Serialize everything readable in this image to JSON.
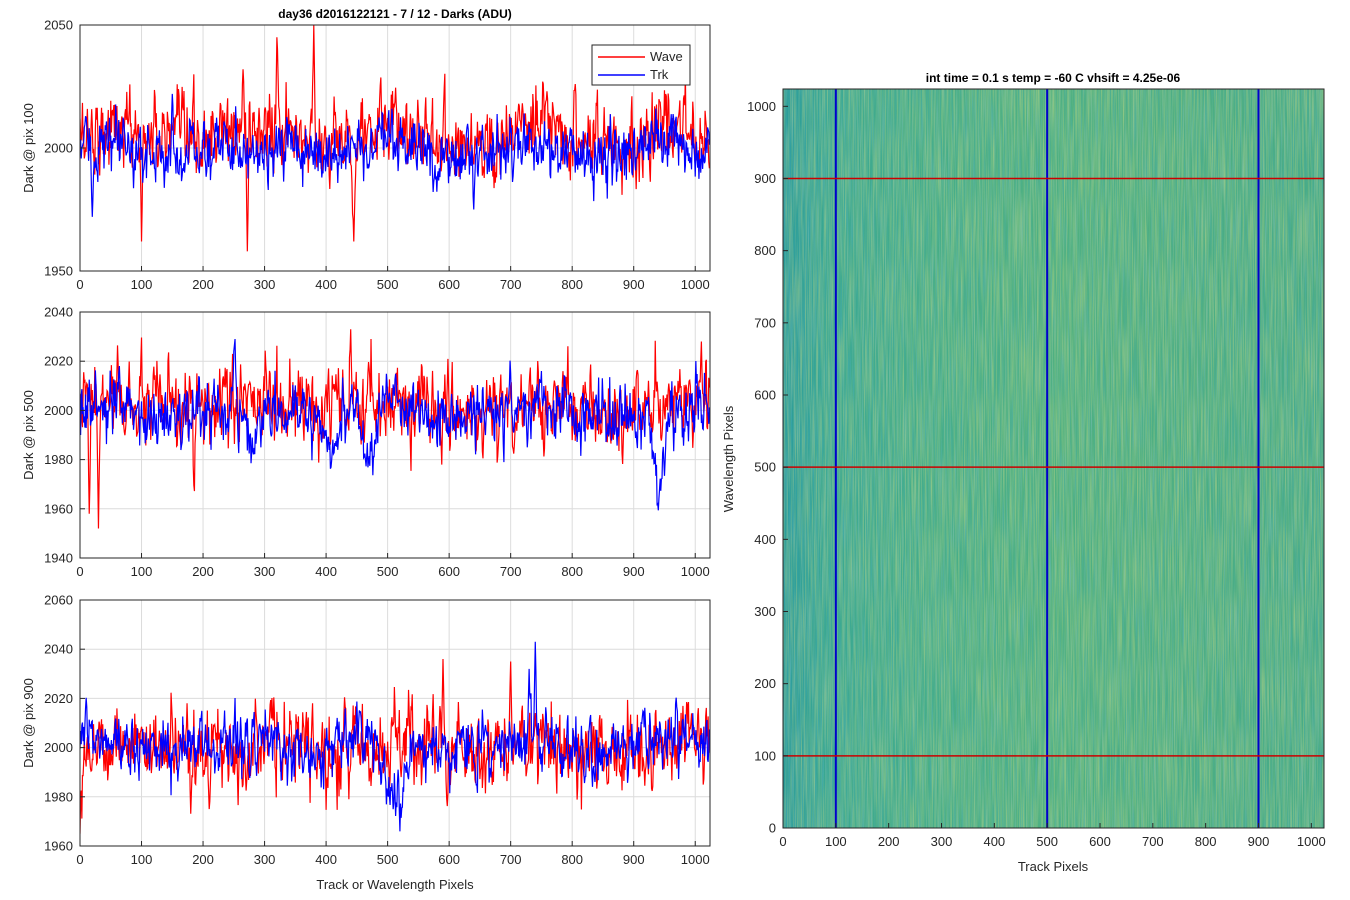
{
  "chart_data": [
    {
      "type": "line",
      "title": "day36 d2016122121 - 7 / 12 - Darks (ADU)",
      "xlabel": "",
      "ylabel": "Dark @ pix 100",
      "xlim": [
        0,
        1024
      ],
      "ylim": [
        1950,
        2050
      ],
      "xticks": [
        0,
        100,
        200,
        300,
        400,
        500,
        600,
        700,
        800,
        900,
        1000
      ],
      "yticks": [
        1950,
        2000,
        2050
      ],
      "grid": "on",
      "legend": {
        "position": "top-right",
        "entries": [
          "Wave",
          "Trk"
        ]
      },
      "series": [
        {
          "name": "Wave",
          "color": "#ff0000",
          "mean": 2005,
          "noise": 8,
          "spikes": [
            [
              380,
              2050
            ],
            [
              320,
              2045
            ],
            [
              265,
              2032
            ],
            [
              272,
              1958
            ],
            [
              100,
              1962
            ],
            [
              445,
              1962
            ]
          ]
        },
        {
          "name": "Trk",
          "color": "#0000ff",
          "mean": 1999,
          "noise": 6,
          "spikes": [
            [
              20,
              1972
            ],
            [
              150,
              2022
            ],
            [
              640,
              1975
            ]
          ]
        }
      ]
    },
    {
      "type": "line",
      "title": "",
      "xlabel": "",
      "ylabel": "Dark @ pix 500",
      "xlim": [
        0,
        1024
      ],
      "ylim": [
        1940,
        2040
      ],
      "xticks": [
        0,
        100,
        200,
        300,
        400,
        500,
        600,
        700,
        800,
        900,
        1000
      ],
      "yticks": [
        1940,
        1960,
        1980,
        2000,
        2020,
        2040
      ],
      "grid": "on",
      "series": [
        {
          "name": "Wave",
          "color": "#ff0000",
          "mean": 2001,
          "noise": 8,
          "spikes": [
            [
              440,
              2033
            ],
            [
              30,
              1952
            ],
            [
              15,
              1958
            ],
            [
              1010,
              2028
            ]
          ]
        },
        {
          "name": "Trk",
          "color": "#0000ff",
          "mean": 1999,
          "noise": 6,
          "dips": [
            [
              940,
              1956
            ],
            [
              470,
              1980
            ],
            [
              410,
              1982
            ],
            [
              280,
              1982
            ]
          ]
        }
      ]
    },
    {
      "type": "line",
      "title": "",
      "xlabel": "Track or Wavelength Pixels",
      "ylabel": "Dark @ pix 900",
      "xlim": [
        0,
        1024
      ],
      "ylim": [
        1960,
        2060
      ],
      "xticks": [
        0,
        100,
        200,
        300,
        400,
        500,
        600,
        700,
        800,
        900,
        1000
      ],
      "yticks": [
        1960,
        1980,
        2000,
        2020,
        2040,
        2060
      ],
      "grid": "on",
      "series": [
        {
          "name": "Wave",
          "color": "#ff0000",
          "mean": 2000,
          "noise": 8,
          "spikes": [
            [
              590,
              2036
            ],
            [
              700,
              2035
            ],
            [
              0,
              1965
            ],
            [
              210,
              1975
            ]
          ]
        },
        {
          "name": "Trk",
          "color": "#0000ff",
          "mean": 2001,
          "noise": 6,
          "spikes": [
            [
              740,
              2043
            ],
            [
              730,
              2032
            ]
          ],
          "dips": [
            [
              520,
              1973
            ],
            [
              500,
              1976
            ]
          ]
        }
      ]
    },
    {
      "type": "heatmap",
      "title": "int time = 0.1 s   temp = -60 C   vhsift = 4.25e-06",
      "xlabel": "Track Pixels",
      "ylabel": "Wavelength Pixels",
      "xlim": [
        0,
        1024
      ],
      "ylim": [
        0,
        1024
      ],
      "xticks": [
        0,
        100,
        200,
        300,
        400,
        500,
        600,
        700,
        800,
        900,
        1000
      ],
      "yticks": [
        0,
        100,
        200,
        300,
        400,
        500,
        600,
        700,
        800,
        900,
        1000
      ],
      "colormap": "parula",
      "vertical_lines": {
        "color": "#0000cc",
        "x": [
          100,
          500,
          900
        ]
      },
      "horizontal_lines": {
        "color": "#cc0000",
        "y": [
          100,
          500,
          900
        ]
      }
    }
  ]
}
